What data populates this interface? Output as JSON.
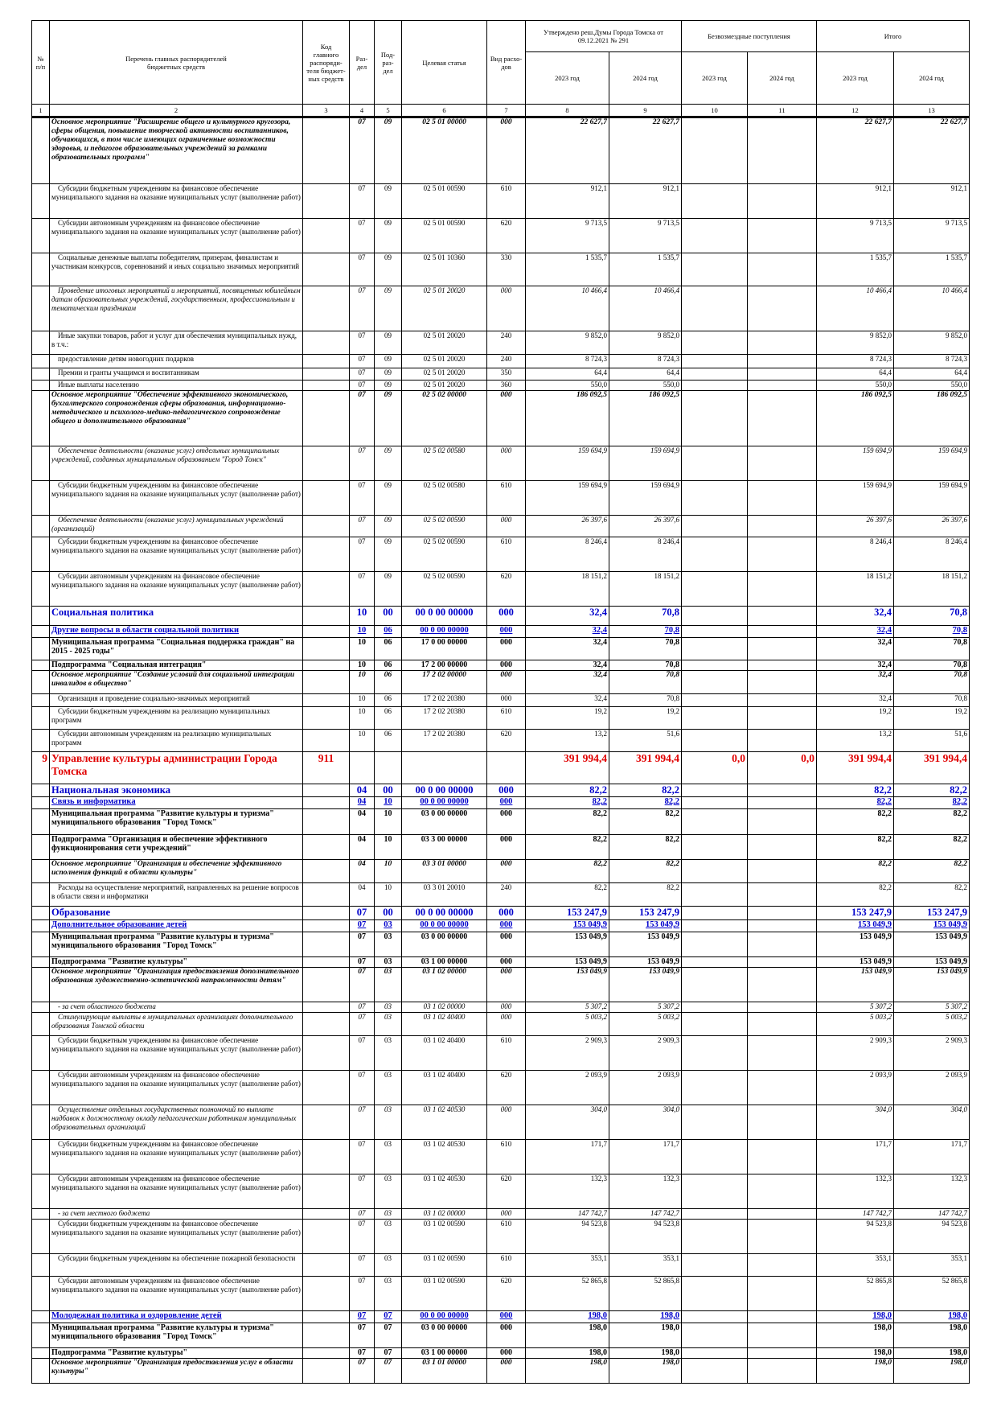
{
  "header": {
    "num": "№\nп/п",
    "name": "Перечень главных распорядителей\nбюджетных средств",
    "code": "Код\nглавного\nраспоряди-\nтеля бюджет-\nных средств",
    "razdel": "Раз-\nдел",
    "podrazdel": "Под-\nраз-\nдел",
    "target": "Целевая статья",
    "vid": "Вид расхо-\nдов",
    "approved": "Утверждено реш.Думы Города Томска от\n09.12.2021 № 291",
    "grants": "Безвозмездные поступления",
    "total": "Итого",
    "years": [
      "2023 год",
      "2024 год",
      "2023 год",
      "2024 год",
      "2023 год",
      "2024 год"
    ],
    "column_numbers": [
      "1",
      "2",
      "3",
      "4",
      "5",
      "6",
      "7",
      "8",
      "9",
      "10",
      "11",
      "12",
      "13"
    ]
  },
  "table": {
    "rows": [
      [
        null,
        "Основное мероприятие \"Расширение общего и культурного кругозора, сферы общения, повышение творческой активности воспитанников, обучающихся, в том числе имеющих ограниченные возможности здоровья, и педагогов образовательных учреждений за рамками образовательных программ\"",
        null,
        "07",
        "09",
        "02 5 01 00000",
        "000",
        "22 627,7",
        "22 627,7",
        null,
        null,
        "22 627,7",
        "22 627,7"
      ],
      [
        null,
        "Субсидии бюджетным учреждениям на финансовое обеспечение муниципального задания на оказание муниципальных услуг (выполнение работ)",
        null,
        "07",
        "09",
        "02 5 01 00590",
        "610",
        "912,1",
        "912,1",
        null,
        null,
        "912,1",
        "912,1"
      ],
      [
        null,
        "Субсидии автономным учреждениям на финансовое обеспечение муниципального задания на оказание муниципальных услуг (выполнение работ)",
        null,
        "07",
        "09",
        "02 5 01 00590",
        "620",
        "9 713,5",
        "9 713,5",
        null,
        null,
        "9 713,5",
        "9 713,5"
      ],
      [
        null,
        "Социальные денежные выплаты победителям, призерам, финалистам и участникам конкурсов, соревнований и иных социально значимых мероприятий",
        null,
        "07",
        "09",
        "02 5 01 10360",
        "330",
        "1 535,7",
        "1 535,7",
        null,
        null,
        "1 535,7",
        "1 535,7"
      ],
      [
        null,
        "Проведение итоговых мероприятий и мероприятий, посвященных юбилейным датам образовательных учреждений, государственным, профессиональным и тематическим праздникам",
        null,
        "07",
        "09",
        "02 5 01 20020",
        "000",
        "10 466,4",
        "10 466,4",
        null,
        null,
        "10 466,4",
        "10 466,4"
      ],
      [
        null,
        "Иные закупки товаров, работ и услуг для обеспечения муниципальных нужд, в т.ч.:",
        null,
        "07",
        "09",
        "02 5 01 20020",
        "240",
        "9 852,0",
        "9 852,0",
        null,
        null,
        "9 852,0",
        "9 852,0"
      ],
      [
        null,
        "предоставление детям новогодних подарков",
        null,
        "07",
        "09",
        "02 5 01 20020",
        "240",
        "8 724,3",
        "8 724,3",
        null,
        null,
        "8 724,3",
        "8 724,3"
      ],
      [
        null,
        "Премии и гранты учащимся и воспитанникам",
        null,
        "07",
        "09",
        "02 5 01 20020",
        "350",
        "64,4",
        "64,4",
        null,
        null,
        "64,4",
        "64,4"
      ],
      [
        null,
        "Иные выплаты населению",
        null,
        "07",
        "09",
        "02 5 01 20020",
        "360",
        "550,0",
        "550,0",
        null,
        null,
        "550,0",
        "550,0"
      ],
      [
        null,
        "Основное мероприятие \"Обеспечение эффективного экономического, бухгалтерского сопровождения сферы образования, информационно-методического и психолого-медико-педагогического сопровождение общего и дополнительного образования\"",
        null,
        "07",
        "09",
        "02 5 02 00000",
        "000",
        "186 092,5",
        "186 092,5",
        null,
        null,
        "186 092,5",
        "186 092,5"
      ],
      [
        null,
        "Обеспечение деятельности (оказание услуг) отдельных муниципальных учреждений, созданных муниципальным образованием \"Город Томск\"",
        null,
        "07",
        "09",
        "02 5 02 00580",
        "000",
        "159 694,9",
        "159 694,9",
        null,
        null,
        "159 694,9",
        "159 694,9"
      ],
      [
        null,
        "Субсидии бюджетным учреждениям на финансовое обеспечение муниципального задания на оказание муниципальных услуг (выполнение работ)",
        null,
        "07",
        "09",
        "02 5 02 00580",
        "610",
        "159 694,9",
        "159 694,9",
        null,
        null,
        "159 694,9",
        "159 694,9"
      ],
      [
        null,
        "Обеспечение деятельности (оказание услуг) муниципальных учреждений (организаций)",
        null,
        "07",
        "09",
        "02 5 02 00590",
        "000",
        "26 397,6",
        "26 397,6",
        null,
        null,
        "26 397,6",
        "26 397,6"
      ],
      [
        null,
        "Субсидии бюджетным учреждениям на финансовое обеспечение муниципального задания на оказание муниципальных услуг (выполнение работ)",
        null,
        "07",
        "09",
        "02 5 02 00590",
        "610",
        "8 246,4",
        "8 246,4",
        null,
        null,
        "8 246,4",
        "8 246,4"
      ],
      [
        null,
        "Субсидии автономным учреждениям на финансовое обеспечение муниципального задания на оказание муниципальных услуг (выполнение работ)",
        null,
        "07",
        "09",
        "02 5 02 00590",
        "620",
        "18 151,2",
        "18 151,2",
        null,
        null,
        "18 151,2",
        "18 151,2"
      ],
      [
        null,
        "Социальная политика",
        null,
        "10",
        "00",
        "00 0 00 00000",
        "000",
        "32,4",
        "70,8",
        null,
        null,
        "32,4",
        "70,8"
      ],
      [
        null,
        "Другие вопросы в области социальной политики",
        null,
        "10",
        "06",
        "00 0 00 00000",
        "000",
        "32,4",
        "70,8",
        null,
        null,
        "32,4",
        "70,8"
      ],
      [
        null,
        "Муниципальная программа \"Социальная поддержка граждан\" на 2015 - 2025 годы\"",
        null,
        "10",
        "06",
        "17 0 00 00000",
        "000",
        "32,4",
        "70,8",
        null,
        null,
        "32,4",
        "70,8"
      ],
      [
        null,
        "Подпрограмма \"Социальная интеграция\"",
        null,
        "10",
        "06",
        "17 2 00 00000",
        "000",
        "32,4",
        "70,8",
        null,
        null,
        "32,4",
        "70,8"
      ],
      [
        null,
        "Основное мероприятие \"Создание условий для социальной интеграции инвалидов в общество\"",
        null,
        "10",
        "06",
        "17 2 02 00000",
        "000",
        "32,4",
        "70,8",
        null,
        null,
        "32,4",
        "70,8"
      ],
      [
        null,
        "Организация и проведение социально-значимых мероприятий",
        null,
        "10",
        "06",
        "17 2 02 20380",
        "000",
        "32,4",
        "70,8",
        null,
        null,
        "32,4",
        "70,8"
      ],
      [
        null,
        "Субсидии бюджетным учреждениям на реализацию муниципальных программ",
        null,
        "10",
        "06",
        "17 2 02 20380",
        "610",
        "19,2",
        "19,2",
        null,
        null,
        "19,2",
        "19,2"
      ],
      [
        null,
        "Субсидии автономным учреждениям на реализацию муниципальных программ",
        null,
        "10",
        "06",
        "17 2 02 20380",
        "620",
        "13,2",
        "51,6",
        null,
        null,
        "13,2",
        "51,6"
      ],
      [
        "9",
        "Управление культуры администрации Города Томска",
        "911",
        null,
        null,
        null,
        null,
        "391 994,4",
        "391 994,4",
        "0,0",
        "0,0",
        "391 994,4",
        "391 994,4"
      ],
      [
        null,
        "Национальная экономика",
        null,
        "04",
        "00",
        "00 0 00 00000",
        "000",
        "82,2",
        "82,2",
        null,
        null,
        "82,2",
        "82,2"
      ],
      [
        null,
        "Связь и информатика",
        null,
        "04",
        "10",
        "00 0 00 00000",
        "000",
        "82,2",
        "82,2",
        null,
        null,
        "82,2",
        "82,2"
      ],
      [
        null,
        "Муниципальная программа \"Развитие культуры и туризма\" муниципального образования \"Город Томск\"",
        null,
        "04",
        "10",
        "03 0 00 00000",
        "000",
        "82,2",
        "82,2",
        null,
        null,
        "82,2",
        "82,2"
      ],
      [
        null,
        "Подпрограмма \"Организация и обеспечение эффективного функционирования сети учреждений\"",
        null,
        "04",
        "10",
        "03 3 00 00000",
        "000",
        "82,2",
        "82,2",
        null,
        null,
        "82,2",
        "82,2"
      ],
      [
        null,
        "Основное мероприятие \"Организация и обеспечение эффективного исполнения функций в области культуры\"",
        null,
        "04",
        "10",
        "03 3 01 00000",
        "000",
        "82,2",
        "82,2",
        null,
        null,
        "82,2",
        "82,2"
      ],
      [
        null,
        "Расходы на осуществление мероприятий, направленных на решение вопросов в области связи и информатики",
        null,
        "04",
        "10",
        "03 3 01 20010",
        "240",
        "82,2",
        "82,2",
        null,
        null,
        "82,2",
        "82,2"
      ],
      [
        null,
        "Образование",
        null,
        "07",
        "00",
        "00 0 00 00000",
        "000",
        "153 247,9",
        "153 247,9",
        null,
        null,
        "153 247,9",
        "153 247,9"
      ],
      [
        null,
        "Дополнительное образование детей",
        null,
        "07",
        "03",
        "00 0 00 00000",
        "000",
        "153 049,9",
        "153 049,9",
        null,
        null,
        "153 049,9",
        "153 049,9"
      ],
      [
        null,
        "Муниципальная программа \"Развитие культуры и туризма\" муниципального образования \"Город Томск\"",
        null,
        "07",
        "03",
        "03 0 00 00000",
        "000",
        "153 049,9",
        "153 049,9",
        null,
        null,
        "153 049,9",
        "153 049,9"
      ],
      [
        null,
        "Подпрограмма \"Развитие культуры\"",
        null,
        "07",
        "03",
        "03 1 00 00000",
        "000",
        "153 049,9",
        "153 049,9",
        null,
        null,
        "153 049,9",
        "153 049,9"
      ],
      [
        null,
        "Основное мероприятие \"Организация предоставления дополнительного образования художественно-эстетической направленности детям\"",
        null,
        "07",
        "03",
        "03 1 02 00000",
        "000",
        "153 049,9",
        "153 049,9",
        null,
        null,
        "153 049,9",
        "153 049,9"
      ],
      [
        null,
        "- за счет областного бюджета",
        null,
        "07",
        "03",
        "03 1 02 00000",
        "000",
        "5 307,2",
        "5 307,2",
        null,
        null,
        "5 307,2",
        "5 307,2"
      ],
      [
        null,
        "Стимулирующие выплаты в муниципальных организациях дополнительного образования Томской области",
        null,
        "07",
        "03",
        "03 1 02 40400",
        "000",
        "5 003,2",
        "5 003,2",
        null,
        null,
        "5 003,2",
        "5 003,2"
      ],
      [
        null,
        "Субсидии бюджетным учреждениям на финансовое обеспечение муниципального задания на оказание муниципальных услуг (выполнение работ)",
        null,
        "07",
        "03",
        "03 1 02 40400",
        "610",
        "2 909,3",
        "2 909,3",
        null,
        null,
        "2 909,3",
        "2 909,3"
      ],
      [
        null,
        "Субсидии автономным учреждениям на финансовое обеспечение муниципального задания на оказание муниципальных услуг (выполнение работ)",
        null,
        "07",
        "03",
        "03 1 02 40400",
        "620",
        "2 093,9",
        "2 093,9",
        null,
        null,
        "2 093,9",
        "2 093,9"
      ],
      [
        null,
        "Осуществление отдельных государственных полномочий по выплате надбавок к должностному окладу педагогическим работникам муниципальных образовательных организаций",
        null,
        "07",
        "03",
        "03 1 02 40530",
        "000",
        "304,0",
        "304,0",
        null,
        null,
        "304,0",
        "304,0"
      ],
      [
        null,
        "Субсидии бюджетным учреждениям на финансовое обеспечение муниципального задания на оказание муниципальных услуг (выполнение работ)",
        null,
        "07",
        "03",
        "03 1 02 40530",
        "610",
        "171,7",
        "171,7",
        null,
        null,
        "171,7",
        "171,7"
      ],
      [
        null,
        "Субсидии автономным учреждениям на финансовое обеспечение муниципального задания на оказание муниципальных услуг (выполнение работ)",
        null,
        "07",
        "03",
        "03 1 02 40530",
        "620",
        "132,3",
        "132,3",
        null,
        null,
        "132,3",
        "132,3"
      ],
      [
        null,
        "- за счет местного бюджета",
        null,
        "07",
        "03",
        "03 1 02 00000",
        "000",
        "147 742,7",
        "147 742,7",
        null,
        null,
        "147 742,7",
        "147 742,7"
      ],
      [
        null,
        "Субсидии бюджетным учреждениям на финансовое обеспечение муниципального задания на оказание муниципальных услуг (выполнение работ)",
        null,
        "07",
        "03",
        "03 1 02 00590",
        "610",
        "94 523,8",
        "94 523,8",
        null,
        null,
        "94 523,8",
        "94 523,8"
      ],
      [
        null,
        "Субсидии бюджетным учреждениям на обеспечение пожарной безопасности",
        null,
        "07",
        "03",
        "03 1 02 00590",
        "610",
        "353,1",
        "353,1",
        null,
        null,
        "353,1",
        "353,1"
      ],
      [
        null,
        "Субсидии автономным учреждениям на финансовое обеспечение муниципального задания на оказание муниципальных услуг (выполнение работ)",
        null,
        "07",
        "03",
        "03 1 02 00590",
        "620",
        "52 865,8",
        "52 865,8",
        null,
        null,
        "52 865,8",
        "52 865,8"
      ],
      [
        null,
        "Молодежная политика и оздоровление детей",
        null,
        "07",
        "07",
        "00 0 00 00000",
        "000",
        "198,0",
        "198,0",
        null,
        null,
        "198,0",
        "198,0"
      ],
      [
        null,
        "Муниципальная программа \"Развитие культуры и туризма\" муниципального образования \"Город Томск\"",
        null,
        "07",
        "07",
        "03 0 00 00000",
        "000",
        "198,0",
        "198,0",
        null,
        null,
        "198,0",
        "198,0"
      ],
      [
        null,
        "Подпрограмма \"Развитие культуры\"",
        null,
        "07",
        "07",
        "03 1 00 00000",
        "000",
        "198,0",
        "198,0",
        null,
        null,
        "198,0",
        "198,0"
      ],
      [
        null,
        "Основное мероприятие \"Организация предоставления услуг в области культуры\"",
        null,
        "07",
        "07",
        "03 1 01 00000",
        "000",
        "198,0",
        "198,0",
        null,
        null,
        "198,0",
        "198,0"
      ]
    ]
  }
}
